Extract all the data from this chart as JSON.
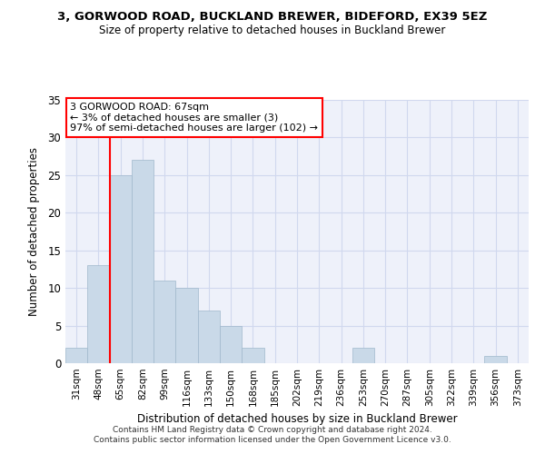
{
  "title1": "3, GORWOOD ROAD, BUCKLAND BREWER, BIDEFORD, EX39 5EZ",
  "title2": "Size of property relative to detached houses in Buckland Brewer",
  "xlabel": "Distribution of detached houses by size in Buckland Brewer",
  "ylabel": "Number of detached properties",
  "categories": [
    "31sqm",
    "48sqm",
    "65sqm",
    "82sqm",
    "99sqm",
    "116sqm",
    "133sqm",
    "150sqm",
    "168sqm",
    "185sqm",
    "202sqm",
    "219sqm",
    "236sqm",
    "253sqm",
    "270sqm",
    "287sqm",
    "305sqm",
    "322sqm",
    "339sqm",
    "356sqm",
    "373sqm"
  ],
  "values": [
    2,
    13,
    25,
    27,
    11,
    10,
    7,
    5,
    2,
    0,
    0,
    0,
    0,
    2,
    0,
    0,
    0,
    0,
    0,
    1,
    0
  ],
  "bar_color": "#c9d9e8",
  "bar_edge_color": "#a0b8cc",
  "ylim": [
    0,
    35
  ],
  "yticks": [
    0,
    5,
    10,
    15,
    20,
    25,
    30,
    35
  ],
  "annotation_box_text": "3 GORWOOD ROAD: 67sqm\n← 3% of detached houses are smaller (3)\n97% of semi-detached houses are larger (102) →",
  "vline_x": 1.5,
  "bg_color": "#eef1fa",
  "grid_color": "#d0d8ee",
  "footer1": "Contains HM Land Registry data © Crown copyright and database right 2024.",
  "footer2": "Contains public sector information licensed under the Open Government Licence v3.0."
}
